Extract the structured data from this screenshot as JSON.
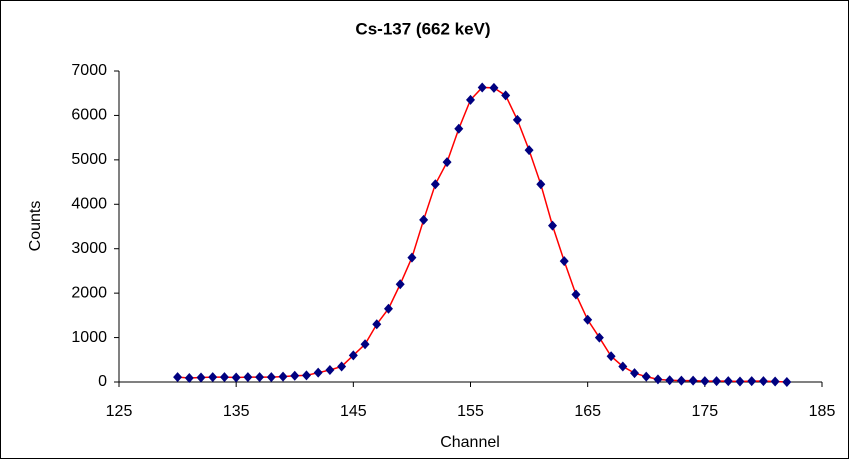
{
  "chart_data": {
    "type": "scatter-line",
    "title": "Cs-137 (662 keV)",
    "x_label": "Channel",
    "y_label": "Counts",
    "x": [
      130,
      131,
      132,
      133,
      134,
      135,
      136,
      137,
      138,
      139,
      140,
      141,
      142,
      143,
      144,
      145,
      146,
      147,
      148,
      149,
      150,
      151,
      152,
      153,
      154,
      155,
      156,
      157,
      158,
      159,
      160,
      161,
      162,
      163,
      164,
      165,
      166,
      167,
      168,
      169,
      170,
      171,
      172,
      173,
      174,
      175,
      176,
      177,
      178,
      179,
      180,
      181,
      182
    ],
    "values": [
      110,
      90,
      100,
      110,
      110,
      100,
      110,
      110,
      110,
      120,
      140,
      150,
      210,
      270,
      350,
      600,
      850,
      1300,
      1650,
      2200,
      2800,
      3650,
      4450,
      4950,
      5700,
      6350,
      6630,
      6620,
      6450,
      5900,
      5220,
      4450,
      3520,
      2720,
      1970,
      1400,
      1000,
      580,
      350,
      200,
      120,
      60,
      40,
      30,
      30,
      20,
      20,
      20,
      10,
      20,
      20,
      10,
      0
    ],
    "marker_color": "#000080",
    "line_color": "#ff0000",
    "xlim": [
      125,
      185
    ],
    "xticks": [
      125,
      135,
      145,
      155,
      165,
      175,
      185
    ],
    "ylim": [
      0,
      7000
    ],
    "yticks": [
      0,
      1000,
      2000,
      3000,
      4000,
      5000,
      6000,
      7000
    ]
  }
}
